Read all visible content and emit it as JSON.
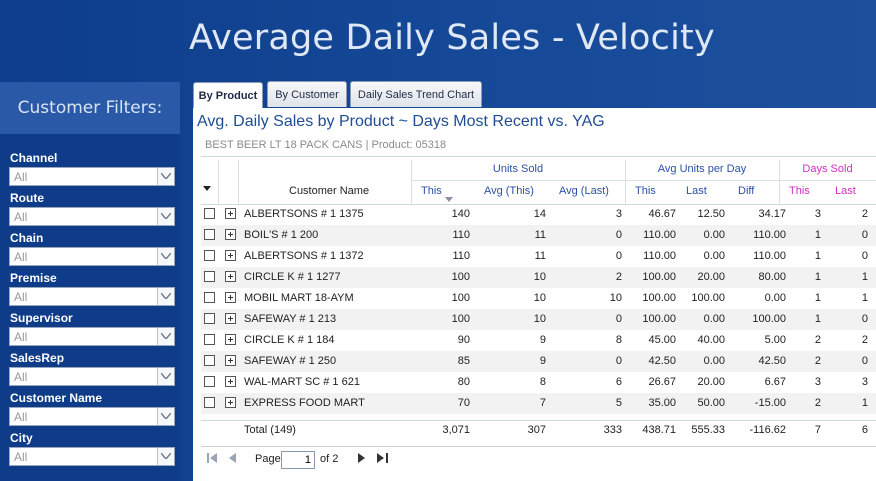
{
  "page_title": "Average Daily Sales - Velocity",
  "filters": {
    "heading": "Customer Filters:",
    "items": [
      {
        "label": "Channel",
        "value": "All"
      },
      {
        "label": "Route",
        "value": "All"
      },
      {
        "label": "Chain",
        "value": "All"
      },
      {
        "label": "Premise",
        "value": "All"
      },
      {
        "label": "Supervisor",
        "value": "All"
      },
      {
        "label": "SalesRep",
        "value": "All"
      },
      {
        "label": "Customer Name",
        "value": "All"
      },
      {
        "label": "City",
        "value": "All"
      }
    ]
  },
  "tabs": [
    {
      "label": "By Product",
      "active": true
    },
    {
      "label": "By Customer",
      "active": false
    },
    {
      "label": "Daily Sales Trend Chart",
      "active": false
    }
  ],
  "report": {
    "title": "Avg. Daily Sales by Product ~ Days Most Recent vs. YAG",
    "subtitle": "BEST BEER LT 18 PACK CANS  |  Product: 05318",
    "groups": {
      "units_sold": "Units Sold",
      "avg_units": "Avg Units per Day",
      "days_sold": "Days Sold"
    },
    "columns": {
      "customer": "Customer Name",
      "this": "This",
      "avg_this": "Avg (This)",
      "avg_last": "Avg (Last)",
      "au_this": "This",
      "au_last": "Last",
      "au_diff": "Diff",
      "ds_this": "This",
      "ds_last": "Last"
    },
    "rows": [
      [
        "ALBERTSONS # 1 1375",
        "140",
        "14",
        "3",
        "46.67",
        "12.50",
        "34.17",
        "3",
        "2"
      ],
      [
        "BOIL'S # 1 200",
        "110",
        "11",
        "0",
        "110.00",
        "0.00",
        "110.00",
        "1",
        "0"
      ],
      [
        "ALBERTSONS # 1 1372",
        "110",
        "11",
        "0",
        "110.00",
        "0.00",
        "110.00",
        "1",
        "0"
      ],
      [
        "CIRCLE K # 1 1277",
        "100",
        "10",
        "2",
        "100.00",
        "20.00",
        "80.00",
        "1",
        "1"
      ],
      [
        "MOBIL MART 18-AYM",
        "100",
        "10",
        "10",
        "100.00",
        "100.00",
        "0.00",
        "1",
        "1"
      ],
      [
        "SAFEWAY # 1 213",
        "100",
        "10",
        "0",
        "100.00",
        "0.00",
        "100.00",
        "1",
        "0"
      ],
      [
        "CIRCLE K # 1 184",
        "90",
        "9",
        "8",
        "45.00",
        "40.00",
        "5.00",
        "2",
        "2"
      ],
      [
        "SAFEWAY # 1 250",
        "85",
        "9",
        "0",
        "42.50",
        "0.00",
        "42.50",
        "2",
        "0"
      ],
      [
        "WAL-MART SC # 1 621",
        "80",
        "8",
        "6",
        "26.67",
        "20.00",
        "6.67",
        "3",
        "3"
      ],
      [
        "EXPRESS FOOD MART",
        "70",
        "7",
        "5",
        "35.00",
        "50.00",
        "-15.00",
        "2",
        "1"
      ]
    ],
    "total": [
      "Total (149)",
      "3,071",
      "307",
      "333",
      "438.71",
      "555.33",
      "-116.62",
      "7",
      "6"
    ]
  },
  "pager": {
    "page_label": "Page",
    "page": "1",
    "of_label": "of 2"
  }
}
